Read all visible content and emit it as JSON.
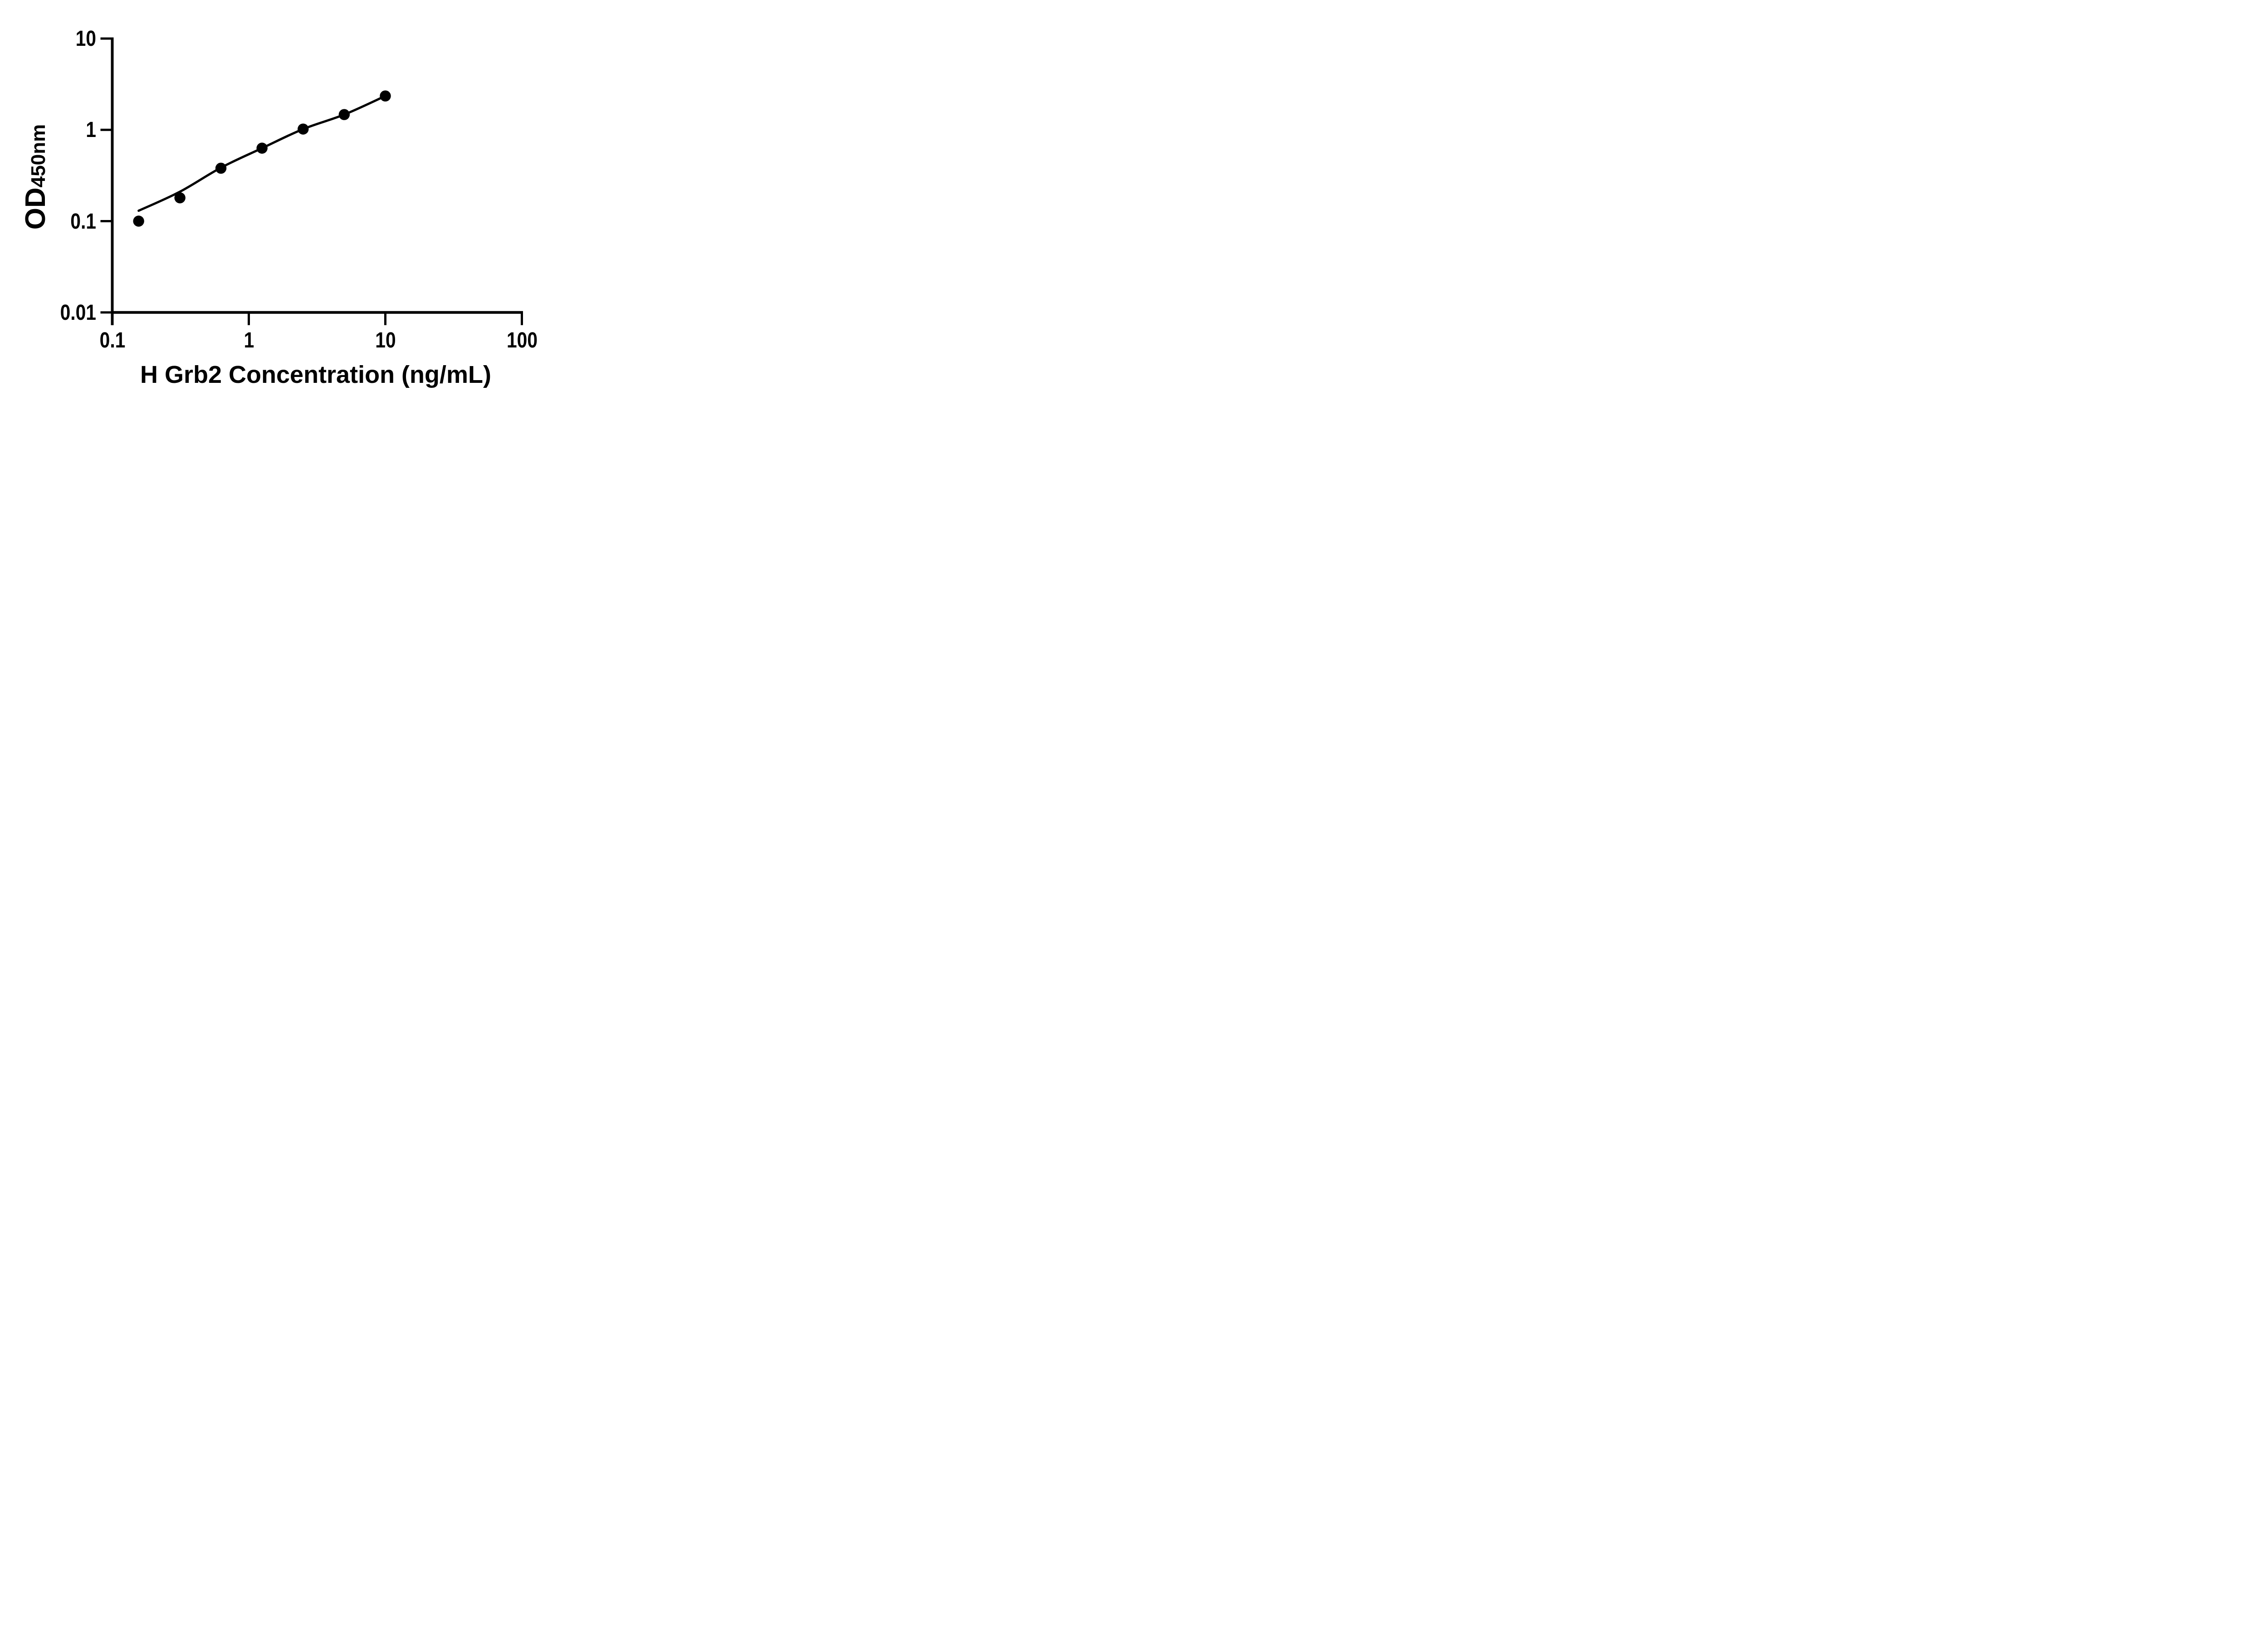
{
  "figure": {
    "background_color": "#ffffff",
    "ink_color": "#000000"
  },
  "chart_data": {
    "type": "scatter",
    "title": "",
    "xlabel": "H Grb2 Concentration (ng/mL)",
    "ylabel": {
      "main": "OD",
      "subscript": "450nm"
    },
    "x_scale": "log10",
    "y_scale": "log10",
    "xlim": [
      0.1,
      100
    ],
    "ylim": [
      0.01,
      10
    ],
    "grid": false,
    "legend_position": "none",
    "x_ticks": [
      {
        "value": 0.1,
        "label": "0.1"
      },
      {
        "value": 1,
        "label": "1"
      },
      {
        "value": 10,
        "label": "10"
      },
      {
        "value": 100,
        "label": "100"
      }
    ],
    "y_ticks": [
      {
        "value": 10,
        "label": "10"
      },
      {
        "value": 1,
        "label": "1"
      },
      {
        "value": 0.1,
        "label": "0.1"
      },
      {
        "value": 0.01,
        "label": "0.01"
      }
    ],
    "series": [
      {
        "name": "standard-data-points",
        "render": "markers",
        "marker_shape": "filled-circle",
        "marker_color": "#000000",
        "points": [
          {
            "x": 0.156,
            "y": 0.1
          },
          {
            "x": 0.313,
            "y": 0.18
          },
          {
            "x": 0.625,
            "y": 0.38
          },
          {
            "x": 1.25,
            "y": 0.63
          },
          {
            "x": 2.5,
            "y": 1.02
          },
          {
            "x": 5,
            "y": 1.47
          },
          {
            "x": 10,
            "y": 2.35
          }
        ]
      },
      {
        "name": "fitted-standard-curve",
        "render": "line",
        "line_color": "#000000",
        "points": [
          {
            "x": 0.156,
            "y": 0.13
          },
          {
            "x": 0.313,
            "y": 0.21
          },
          {
            "x": 0.625,
            "y": 0.385
          },
          {
            "x": 1.25,
            "y": 0.63
          },
          {
            "x": 2.5,
            "y": 1.02
          },
          {
            "x": 5,
            "y": 1.47
          },
          {
            "x": 10,
            "y": 2.35
          }
        ]
      }
    ]
  }
}
